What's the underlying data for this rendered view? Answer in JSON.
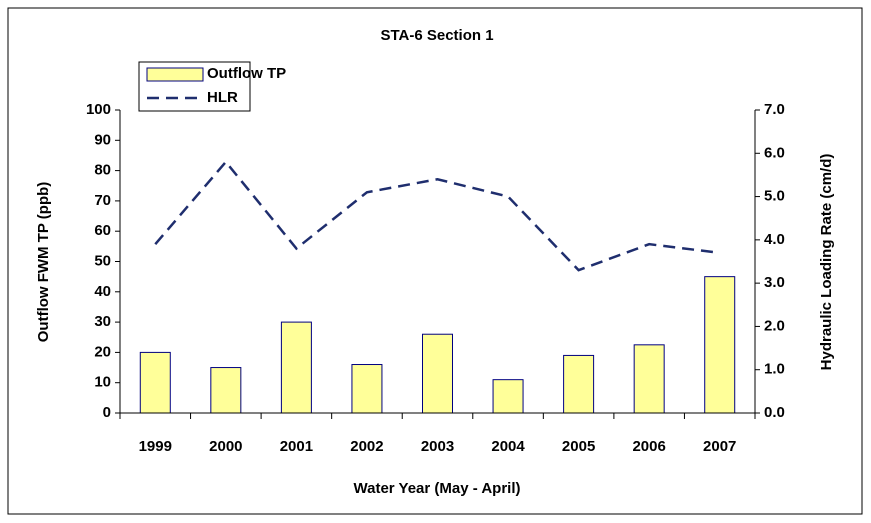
{
  "chart_data": {
    "type": "bar-line",
    "title": "STA-6 Section 1",
    "x_label": "Water Year (May - April)",
    "y_label": "Outflow FWM TP (ppb)",
    "y2_label": "Hydraulic Loading Rate (cm/d)",
    "categories": [
      "1999",
      "2000",
      "2001",
      "2002",
      "2003",
      "2004",
      "2005",
      "2006",
      "2007"
    ],
    "series": [
      {
        "name": "Outflow TP",
        "type": "bar",
        "color": "#ffff99",
        "values": [
          20,
          15,
          30,
          16,
          26,
          11,
          19,
          22.5,
          45
        ]
      },
      {
        "name": "HLR",
        "type": "line",
        "axis": "y2",
        "color": "#1f2e6e",
        "values": [
          3.9,
          5.8,
          3.8,
          5.1,
          5.4,
          5.0,
          3.3,
          3.9,
          3.7
        ]
      }
    ],
    "ylim": [
      0,
      100
    ],
    "yticks": [
      0,
      10,
      20,
      30,
      40,
      50,
      60,
      70,
      80,
      90,
      100
    ],
    "y2lim": [
      0,
      7
    ],
    "y2ticks": [
      {
        "value": 0,
        "label": "0.0"
      },
      {
        "value": 1,
        "label": "1.0"
      },
      {
        "value": 2,
        "label": "2.0"
      },
      {
        "value": 3,
        "label": "3.0"
      },
      {
        "value": 4,
        "label": "4.0"
      },
      {
        "value": 5,
        "label": "5.0"
      },
      {
        "value": 6,
        "label": "6.0"
      },
      {
        "value": 7,
        "label": "7.0"
      }
    ],
    "legend": "upper left"
  }
}
